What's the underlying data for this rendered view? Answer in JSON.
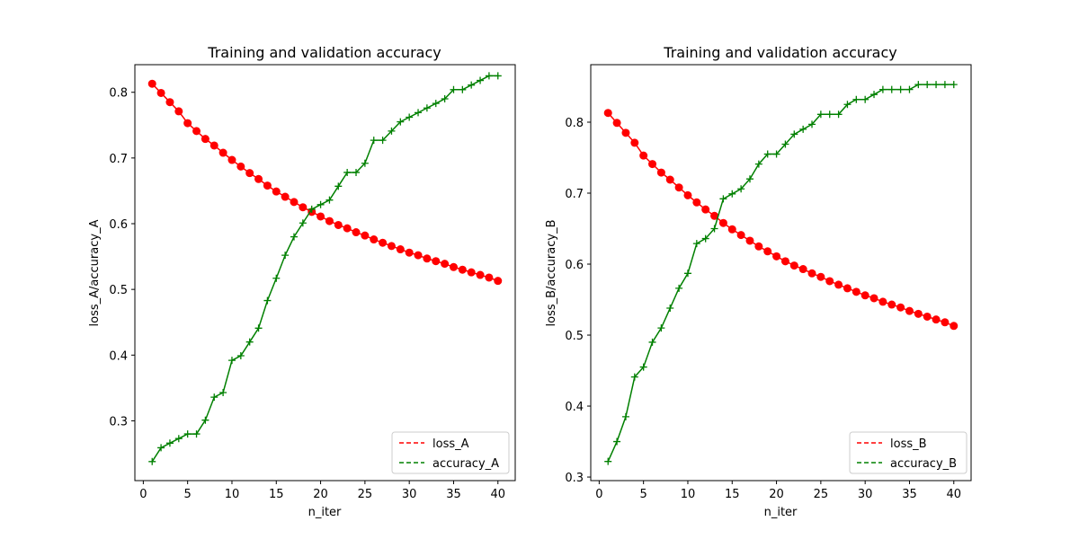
{
  "chart_data": [
    {
      "type": "line",
      "title": "Training and validation accuracy",
      "xlabel": "n_iter",
      "ylabel": "loss_A/accuracy_A",
      "xlim": [
        -0.95,
        41.95
      ],
      "ylim": [
        0.209,
        0.842
      ],
      "xticks": [
        0,
        5,
        10,
        15,
        20,
        25,
        30,
        35,
        40
      ],
      "yticks": [
        0.3,
        0.4,
        0.5,
        0.6,
        0.7,
        0.8
      ],
      "legend_position": "lower right",
      "series": [
        {
          "name": "loss_A",
          "color": "#ff0000",
          "marker": "circle",
          "x": [
            1,
            2,
            3,
            4,
            5,
            6,
            7,
            8,
            9,
            10,
            11,
            12,
            13,
            14,
            15,
            16,
            17,
            18,
            19,
            20,
            21,
            22,
            23,
            24,
            25,
            26,
            27,
            28,
            29,
            30,
            31,
            32,
            33,
            34,
            35,
            36,
            37,
            38,
            39,
            40
          ],
          "values": [
            0.813,
            0.799,
            0.785,
            0.771,
            0.753,
            0.741,
            0.729,
            0.719,
            0.708,
            0.697,
            0.687,
            0.677,
            0.668,
            0.658,
            0.649,
            0.641,
            0.633,
            0.625,
            0.618,
            0.611,
            0.604,
            0.598,
            0.593,
            0.587,
            0.582,
            0.576,
            0.571,
            0.566,
            0.561,
            0.556,
            0.552,
            0.547,
            0.543,
            0.539,
            0.534,
            0.53,
            0.526,
            0.522,
            0.518,
            0.513
          ]
        },
        {
          "name": "accuracy_A",
          "color": "#008000",
          "marker": "plus",
          "x": [
            1,
            2,
            3,
            4,
            5,
            6,
            7,
            8,
            9,
            10,
            11,
            12,
            13,
            14,
            15,
            16,
            17,
            18,
            19,
            20,
            21,
            22,
            23,
            24,
            25,
            26,
            27,
            28,
            29,
            30,
            31,
            32,
            33,
            34,
            35,
            36,
            37,
            38,
            39,
            40
          ],
          "values": [
            0.238,
            0.259,
            0.266,
            0.273,
            0.28,
            0.28,
            0.301,
            0.336,
            0.343,
            0.392,
            0.399,
            0.42,
            0.441,
            0.483,
            0.517,
            0.552,
            0.58,
            0.601,
            0.622,
            0.629,
            0.636,
            0.657,
            0.678,
            0.678,
            0.692,
            0.727,
            0.727,
            0.741,
            0.755,
            0.762,
            0.769,
            0.776,
            0.783,
            0.79,
            0.804,
            0.804,
            0.811,
            0.818,
            0.825,
            0.825
          ]
        }
      ]
    },
    {
      "type": "line",
      "title": "Training and validation accuracy",
      "xlabel": "n_iter",
      "ylabel": "loss_B/accuracy_B",
      "xlim": [
        -0.95,
        41.95
      ],
      "ylim": [
        0.295,
        0.881
      ],
      "xticks": [
        0,
        5,
        10,
        15,
        20,
        25,
        30,
        35,
        40
      ],
      "yticks": [
        0.3,
        0.4,
        0.5,
        0.6,
        0.7,
        0.8
      ],
      "legend_position": "lower right",
      "series": [
        {
          "name": "loss_B",
          "color": "#ff0000",
          "marker": "circle",
          "x": [
            1,
            2,
            3,
            4,
            5,
            6,
            7,
            8,
            9,
            10,
            11,
            12,
            13,
            14,
            15,
            16,
            17,
            18,
            19,
            20,
            21,
            22,
            23,
            24,
            25,
            26,
            27,
            28,
            29,
            30,
            31,
            32,
            33,
            34,
            35,
            36,
            37,
            38,
            39,
            40
          ],
          "values": [
            0.813,
            0.799,
            0.785,
            0.771,
            0.753,
            0.741,
            0.729,
            0.719,
            0.708,
            0.697,
            0.687,
            0.677,
            0.668,
            0.658,
            0.649,
            0.641,
            0.633,
            0.625,
            0.618,
            0.611,
            0.604,
            0.598,
            0.593,
            0.587,
            0.582,
            0.576,
            0.571,
            0.566,
            0.561,
            0.556,
            0.552,
            0.547,
            0.543,
            0.539,
            0.534,
            0.53,
            0.526,
            0.522,
            0.518,
            0.513
          ]
        },
        {
          "name": "accuracy_B",
          "color": "#008000",
          "marker": "plus",
          "x": [
            1,
            2,
            3,
            4,
            5,
            6,
            7,
            8,
            9,
            10,
            11,
            12,
            13,
            14,
            15,
            16,
            17,
            18,
            19,
            20,
            21,
            22,
            23,
            24,
            25,
            26,
            27,
            28,
            29,
            30,
            31,
            32,
            33,
            34,
            35,
            36,
            37,
            38,
            39,
            40
          ],
          "values": [
            0.322,
            0.35,
            0.385,
            0.441,
            0.455,
            0.49,
            0.51,
            0.538,
            0.566,
            0.587,
            0.629,
            0.636,
            0.65,
            0.692,
            0.699,
            0.706,
            0.72,
            0.741,
            0.755,
            0.755,
            0.769,
            0.783,
            0.79,
            0.797,
            0.811,
            0.811,
            0.811,
            0.825,
            0.832,
            0.832,
            0.839,
            0.846,
            0.846,
            0.846,
            0.846,
            0.853,
            0.853,
            0.853,
            0.853,
            0.853
          ]
        }
      ]
    }
  ]
}
